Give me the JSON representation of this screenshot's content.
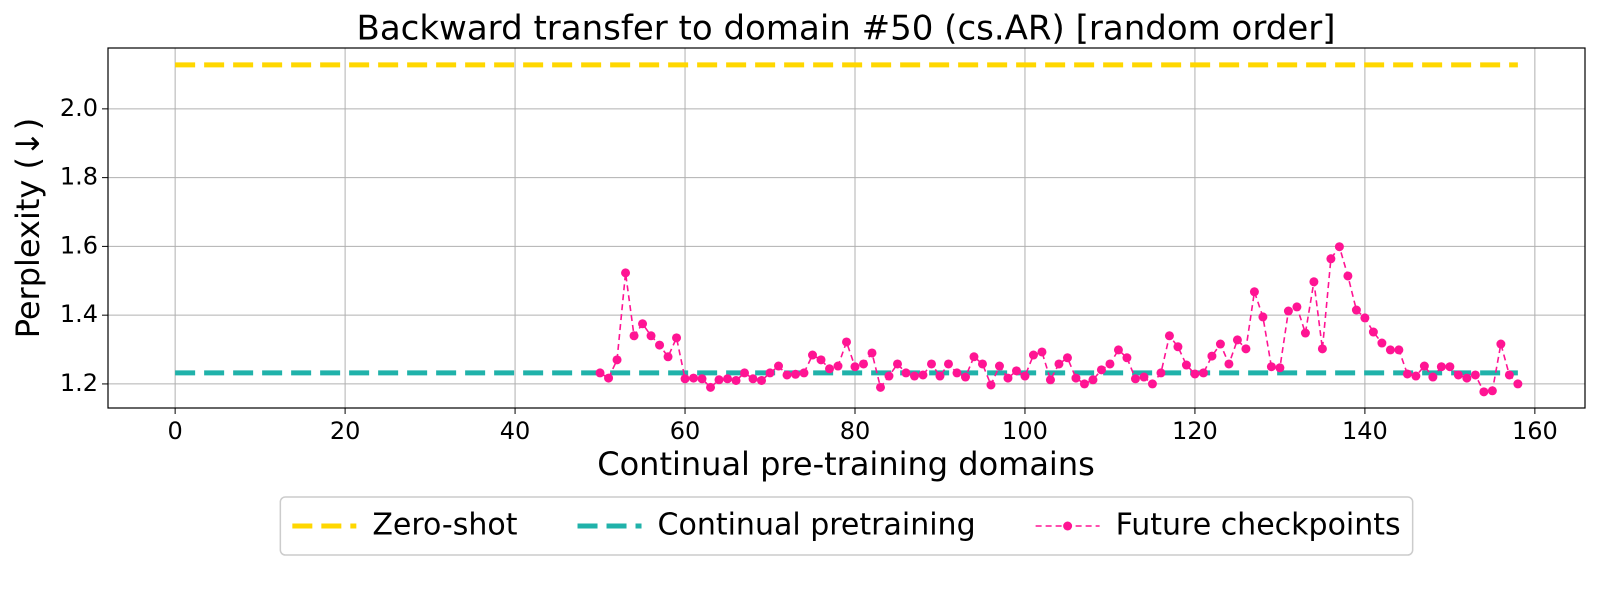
{
  "chart_data": {
    "type": "line",
    "title": "Backward transfer to domain #50 (cs.AR) [random order]",
    "xlabel": "Continual pre-training domains",
    "ylabel": "Perplexity (↓)",
    "xlim": [
      -7.9,
      165.9
    ],
    "ylim": [
      1.13,
      2.177
    ],
    "xticks": [
      0,
      20,
      40,
      60,
      80,
      100,
      120,
      140,
      160
    ],
    "yticks": [
      1.2,
      1.4,
      1.6,
      1.8,
      {
        "value": 2,
        "label": "2.0"
      }
    ],
    "grid": true,
    "legend": "bottom",
    "series": [
      {
        "name": "Zero-shot",
        "color": "#ffd700",
        "style": "dashed",
        "x": [
          0,
          158
        ],
        "values": [
          2.128,
          2.128
        ]
      },
      {
        "name": "Continual pretraining",
        "color": "#20b2aa",
        "style": "dashed",
        "x": [
          0,
          158
        ],
        "values": [
          1.232,
          1.232
        ]
      },
      {
        "name": "Future checkpoints",
        "color": "#ff1493",
        "style": "dashed-markers",
        "x": [
          50,
          51,
          52,
          53,
          54,
          55,
          56,
          57,
          58,
          59,
          60,
          61,
          62,
          63,
          64,
          65,
          66,
          67,
          68,
          69,
          70,
          71,
          72,
          73,
          74,
          75,
          76,
          77,
          78,
          79,
          80,
          81,
          82,
          83,
          84,
          85,
          86,
          87,
          88,
          89,
          90,
          91,
          92,
          93,
          94,
          95,
          96,
          97,
          98,
          99,
          100,
          101,
          102,
          103,
          104,
          105,
          106,
          107,
          108,
          109,
          110,
          111,
          112,
          113,
          114,
          115,
          116,
          117,
          118,
          119,
          120,
          121,
          122,
          123,
          124,
          125,
          126,
          127,
          128,
          129,
          130,
          131,
          132,
          133,
          134,
          135,
          136,
          137,
          138,
          139,
          140,
          141,
          142,
          143,
          144,
          145,
          146,
          147,
          148,
          149,
          150,
          151,
          152,
          153,
          154,
          155,
          156,
          157,
          158
        ],
        "values": [
          1.232,
          1.217,
          1.27,
          1.523,
          1.34,
          1.375,
          1.34,
          1.313,
          1.279,
          1.334,
          1.215,
          1.217,
          1.215,
          1.19,
          1.212,
          1.215,
          1.21,
          1.232,
          1.215,
          1.21,
          1.232,
          1.252,
          1.226,
          1.228,
          1.232,
          1.284,
          1.27,
          1.244,
          1.252,
          1.322,
          1.25,
          1.258,
          1.29,
          1.19,
          1.223,
          1.258,
          1.232,
          1.223,
          1.226,
          1.258,
          1.223,
          1.258,
          1.232,
          1.22,
          1.279,
          1.258,
          1.197,
          1.252,
          1.217,
          1.238,
          1.223,
          1.284,
          1.293,
          1.212,
          1.258,
          1.276,
          1.217,
          1.2,
          1.212,
          1.241,
          1.258,
          1.299,
          1.276,
          1.215,
          1.22,
          1.2,
          1.232,
          1.34,
          1.308,
          1.255,
          1.229,
          1.232,
          1.281,
          1.316,
          1.258,
          1.328,
          1.302,
          1.468,
          1.395,
          1.25,
          1.247,
          1.412,
          1.424,
          1.348,
          1.497,
          1.302,
          1.564,
          1.599,
          1.514,
          1.415,
          1.392,
          1.351,
          1.319,
          1.299,
          1.299,
          1.229,
          1.223,
          1.252,
          1.22,
          1.25,
          1.25,
          1.226,
          1.217,
          1.226,
          1.177,
          1.18,
          1.316,
          1.226,
          1.2
        ]
      }
    ]
  }
}
